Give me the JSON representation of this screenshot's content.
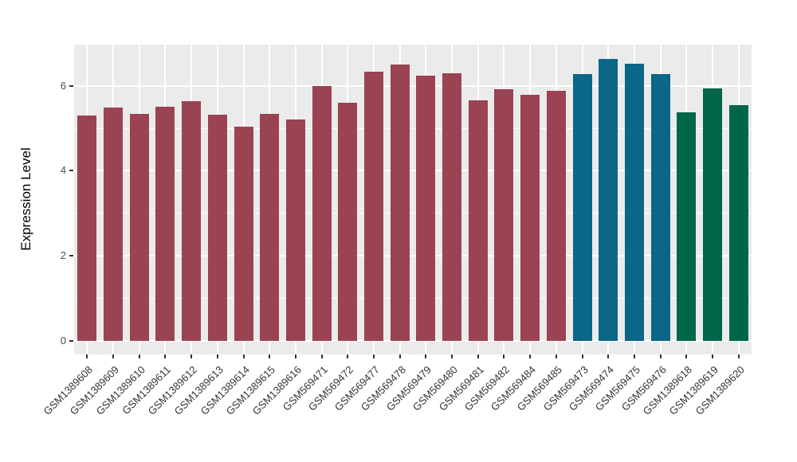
{
  "chart_data": {
    "type": "bar",
    "title": "",
    "xlabel": "",
    "ylabel": "Expression Level",
    "legend_position": "none",
    "grid": "on",
    "panel_background": "#EBEBEB",
    "gridline_color": "#FFFFFF",
    "axis_text_color": "#4D4D4D",
    "yticks": [
      0,
      2,
      4,
      6
    ],
    "minor_yticks": [
      1,
      3,
      5
    ],
    "ylim": [
      -0.32,
      6.97
    ],
    "palette": {
      "maroon": "#9A4352",
      "teal": "#0A6787",
      "green": "#00664A"
    },
    "categories": [
      "GSM1389608",
      "GSM1389609",
      "GSM1389610",
      "GSM1389611",
      "GSM1389612",
      "GSM1389613",
      "GSM1389614",
      "GSM1389615",
      "GSM1389616",
      "GSM569471",
      "GSM569472",
      "GSM569477",
      "GSM569478",
      "GSM569479",
      "GSM569480",
      "GSM569481",
      "GSM569482",
      "GSM569484",
      "GSM569485",
      "GSM569473",
      "GSM569474",
      "GSM569475",
      "GSM569476",
      "GSM1389618",
      "GSM1389619",
      "GSM1389620"
    ],
    "values": [
      5.31,
      5.48,
      5.34,
      5.5,
      5.64,
      5.32,
      5.03,
      5.33,
      5.2,
      6.0,
      5.6,
      6.34,
      6.5,
      6.23,
      6.3,
      5.66,
      5.92,
      5.78,
      5.89,
      6.27,
      6.64,
      6.52,
      6.27,
      5.38,
      5.94,
      5.54
    ],
    "bar_colors": [
      "#9A4352",
      "#9A4352",
      "#9A4352",
      "#9A4352",
      "#9A4352",
      "#9A4352",
      "#9A4352",
      "#9A4352",
      "#9A4352",
      "#9A4352",
      "#9A4352",
      "#9A4352",
      "#9A4352",
      "#9A4352",
      "#9A4352",
      "#9A4352",
      "#9A4352",
      "#9A4352",
      "#9A4352",
      "#0A6787",
      "#0A6787",
      "#0A6787",
      "#0A6787",
      "#00664A",
      "#00664A",
      "#00664A"
    ]
  }
}
